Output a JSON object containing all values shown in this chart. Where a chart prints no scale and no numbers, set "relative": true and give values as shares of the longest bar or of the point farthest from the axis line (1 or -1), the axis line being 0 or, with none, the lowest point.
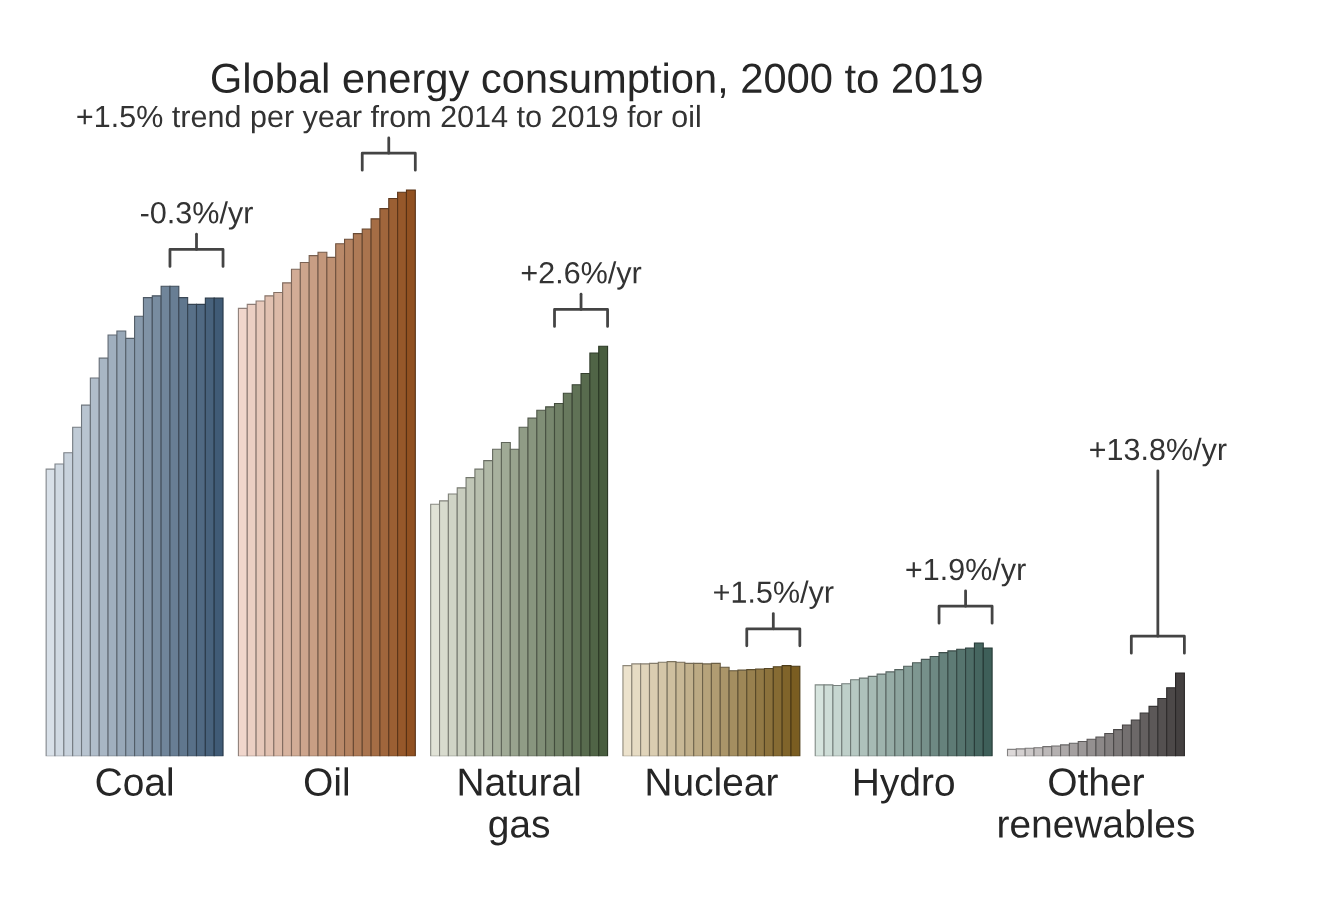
{
  "chart_data": {
    "type": "bar",
    "title": "Global energy consumption, 2000 to 2019",
    "relative": true,
    "legend": false,
    "grid": false,
    "categories": [
      "Coal",
      "Oil",
      "Natural\ngas",
      "Nuclear",
      "Hydro",
      "Other\nrenewables"
    ],
    "series": [
      {
        "colors": [
          "#d8e0e8",
          "#f0d6cc",
          "#e0e2d6",
          "#ece2cc",
          "#d6e4de",
          "#dcd8d8"
        ],
        "values": [
          0.507,
          0.791,
          0.445,
          0.16,
          0.126,
          0.012
        ]
      },
      {
        "colors": [
          "#d0d9e2",
          "#ebcfc3",
          "#d8dbce",
          "#e6dbc3",
          "#ceddd7",
          "#d4d0d0"
        ],
        "values": [
          0.516,
          0.798,
          0.451,
          0.163,
          0.126,
          0.013
        ]
      },
      {
        "colors": [
          "#c8d2dc",
          "#e6c8ba",
          "#d0d4c6",
          "#e0d4ba",
          "#c6d6d0",
          "#ccc8c8"
        ],
        "values": [
          0.536,
          0.804,
          0.463,
          0.163,
          0.125,
          0.014
        ]
      },
      {
        "colors": [
          "#c0cbd6",
          "#e1c1b1",
          "#c8cdbe",
          "#dacdb1",
          "#becfc9",
          "#c4c0c0"
        ],
        "values": [
          0.581,
          0.813,
          0.474,
          0.164,
          0.128,
          0.015
        ]
      },
      {
        "colors": [
          "#b8c4d0",
          "#dcbaa8",
          "#c0c6b6",
          "#d4c6a8",
          "#b6c8c2",
          "#bcb8b8"
        ],
        "values": [
          0.62,
          0.819,
          0.492,
          0.166,
          0.135,
          0.017
        ]
      },
      {
        "colors": [
          "#b0bdca",
          "#d7b39f",
          "#b8bfae",
          "#cebf9f",
          "#aec1bb",
          "#b4b0b0"
        ],
        "values": [
          0.668,
          0.836,
          0.507,
          0.167,
          0.138,
          0.018
        ]
      },
      {
        "colors": [
          "#a8b6c4",
          "#d2ac96",
          "#b0b8a6",
          "#c8b896",
          "#a6bab4",
          "#aca8a8"
        ],
        "values": [
          0.703,
          0.86,
          0.522,
          0.166,
          0.141,
          0.02
        ]
      },
      {
        "colors": [
          "#a0afbe",
          "#cda58d",
          "#a8b19e",
          "#c2b18d",
          "#9eb3ad",
          "#a4a0a0"
        ],
        "values": [
          0.744,
          0.872,
          0.542,
          0.164,
          0.145,
          0.023
        ]
      },
      {
        "colors": [
          "#98a8b8",
          "#c89e84",
          "#a0aa96",
          "#bcaa84",
          "#96aca6",
          "#9c9898"
        ],
        "values": [
          0.751,
          0.884,
          0.554,
          0.164,
          0.149,
          0.026
        ]
      },
      {
        "colors": [
          "#90a1b2",
          "#c3977b",
          "#98a38e",
          "#b6a37b",
          "#8ea59f",
          "#949090"
        ],
        "values": [
          0.738,
          0.89,
          0.542,
          0.163,
          0.153,
          0.03
        ]
      },
      {
        "colors": [
          "#889aac",
          "#be9072",
          "#909c86",
          "#b09c72",
          "#869e98",
          "#8c8888"
        ],
        "values": [
          0.777,
          0.881,
          0.581,
          0.164,
          0.159,
          0.034
        ]
      },
      {
        "colors": [
          "#8093a6",
          "#b98969",
          "#88957e",
          "#aa9569",
          "#7e9791",
          "#848080"
        ],
        "values": [
          0.81,
          0.905,
          0.597,
          0.157,
          0.165,
          0.04
        ]
      },
      {
        "colors": [
          "#788ca0",
          "#b48260",
          "#808e76",
          "#a48e60",
          "#76908a",
          "#7c7878"
        ],
        "values": [
          0.813,
          0.913,
          0.611,
          0.151,
          0.171,
          0.047
        ]
      },
      {
        "colors": [
          "#70859a",
          "#af7b57",
          "#78876e",
          "#9e8757",
          "#6e8983",
          "#747070"
        ],
        "values": [
          0.83,
          0.923,
          0.617,
          0.152,
          0.176,
          0.055
        ]
      },
      {
        "colors": [
          "#687e94",
          "#aa744e",
          "#708066",
          "#98804e",
          "#66827c",
          "#6c6868"
        ],
        "values": [
          0.83,
          0.931,
          0.623,
          0.153,
          0.183,
          0.064
        ]
      },
      {
        "colors": [
          "#60778e",
          "#a56d45",
          "#68795e",
          "#927945",
          "#5e7b75",
          "#646060"
        ],
        "values": [
          0.81,
          0.949,
          0.641,
          0.154,
          0.186,
          0.076
        ]
      },
      {
        "colors": [
          "#587088",
          "#a0663c",
          "#607256",
          "#8c723c",
          "#56746e",
          "#5c5858"
        ],
        "values": [
          0.798,
          0.967,
          0.656,
          0.155,
          0.189,
          0.088
        ]
      },
      {
        "colors": [
          "#506982",
          "#9b5f33",
          "#586b4e",
          "#866b33",
          "#4e6d67",
          "#545050"
        ],
        "values": [
          0.798,
          0.985,
          0.676,
          0.158,
          0.191,
          0.102
        ]
      },
      {
        "colors": [
          "#48627c",
          "#96582a",
          "#506446",
          "#80642a",
          "#466660",
          "#4c4848"
        ],
        "values": [
          0.809,
          0.996,
          0.712,
          0.16,
          0.2,
          0.121
        ]
      },
      {
        "colors": [
          "#405b76",
          "#915121",
          "#485d3e",
          "#7a5d21",
          "#3e5f59",
          "#444040"
        ],
        "values": [
          0.809,
          1.0,
          0.724,
          0.159,
          0.191,
          0.147
        ]
      }
    ],
    "annotations": [
      "-0.3%/yr",
      "+1.5% trend per year from 2014 to 2019 for oil",
      "+2.6%/yr",
      "+1.5%/yr",
      "+1.9%/yr",
      "+13.8%/yr"
    ]
  }
}
